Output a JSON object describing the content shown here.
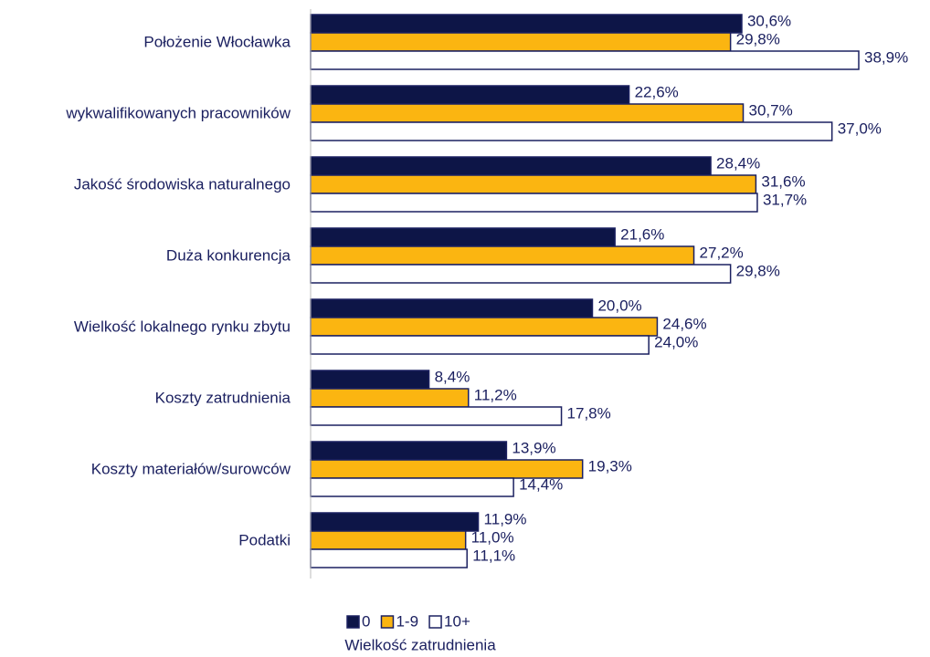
{
  "chart_data": {
    "type": "bar",
    "orientation": "horizontal",
    "categories": [
      "Położenie Włocławka",
      "wykwalifikowanych pracowników",
      "Jakość środowiska naturalnego",
      "Duża konkurencja",
      "Wielkość lokalnego rynku zbytu",
      "Koszty zatrudnienia",
      "Koszty materiałów/surowców",
      "Podatki"
    ],
    "series": [
      {
        "name": "0",
        "color": "#0d1547",
        "values": [
          30.6,
          22.6,
          28.4,
          21.6,
          20.0,
          8.4,
          13.9,
          11.9
        ],
        "value_labels": [
          "30,6%",
          "22,6%",
          "28,4%",
          "21,6%",
          "20,0%",
          "8,4%",
          "13,9%",
          "11,9%"
        ]
      },
      {
        "name": "1-9",
        "color": "#fbb511",
        "values": [
          29.8,
          30.7,
          31.6,
          27.2,
          24.6,
          11.2,
          19.3,
          11.0
        ],
        "value_labels": [
          "29,8%",
          "30,7%",
          "31,6%",
          "27,2%",
          "24,6%",
          "11,2%",
          "19,3%",
          "11,0%"
        ]
      },
      {
        "name": "10+",
        "color": "#ffffff",
        "values": [
          38.9,
          37.0,
          31.7,
          29.8,
          24.0,
          17.8,
          14.4,
          11.1
        ],
        "value_labels": [
          "38,9%",
          "37,0%",
          "31,7%",
          "29,8%",
          "24,0%",
          "17,8%",
          "14,4%",
          "11,1%"
        ]
      }
    ],
    "legend_title": "Wielkość zatrudnienia",
    "legend": "bottom"
  }
}
